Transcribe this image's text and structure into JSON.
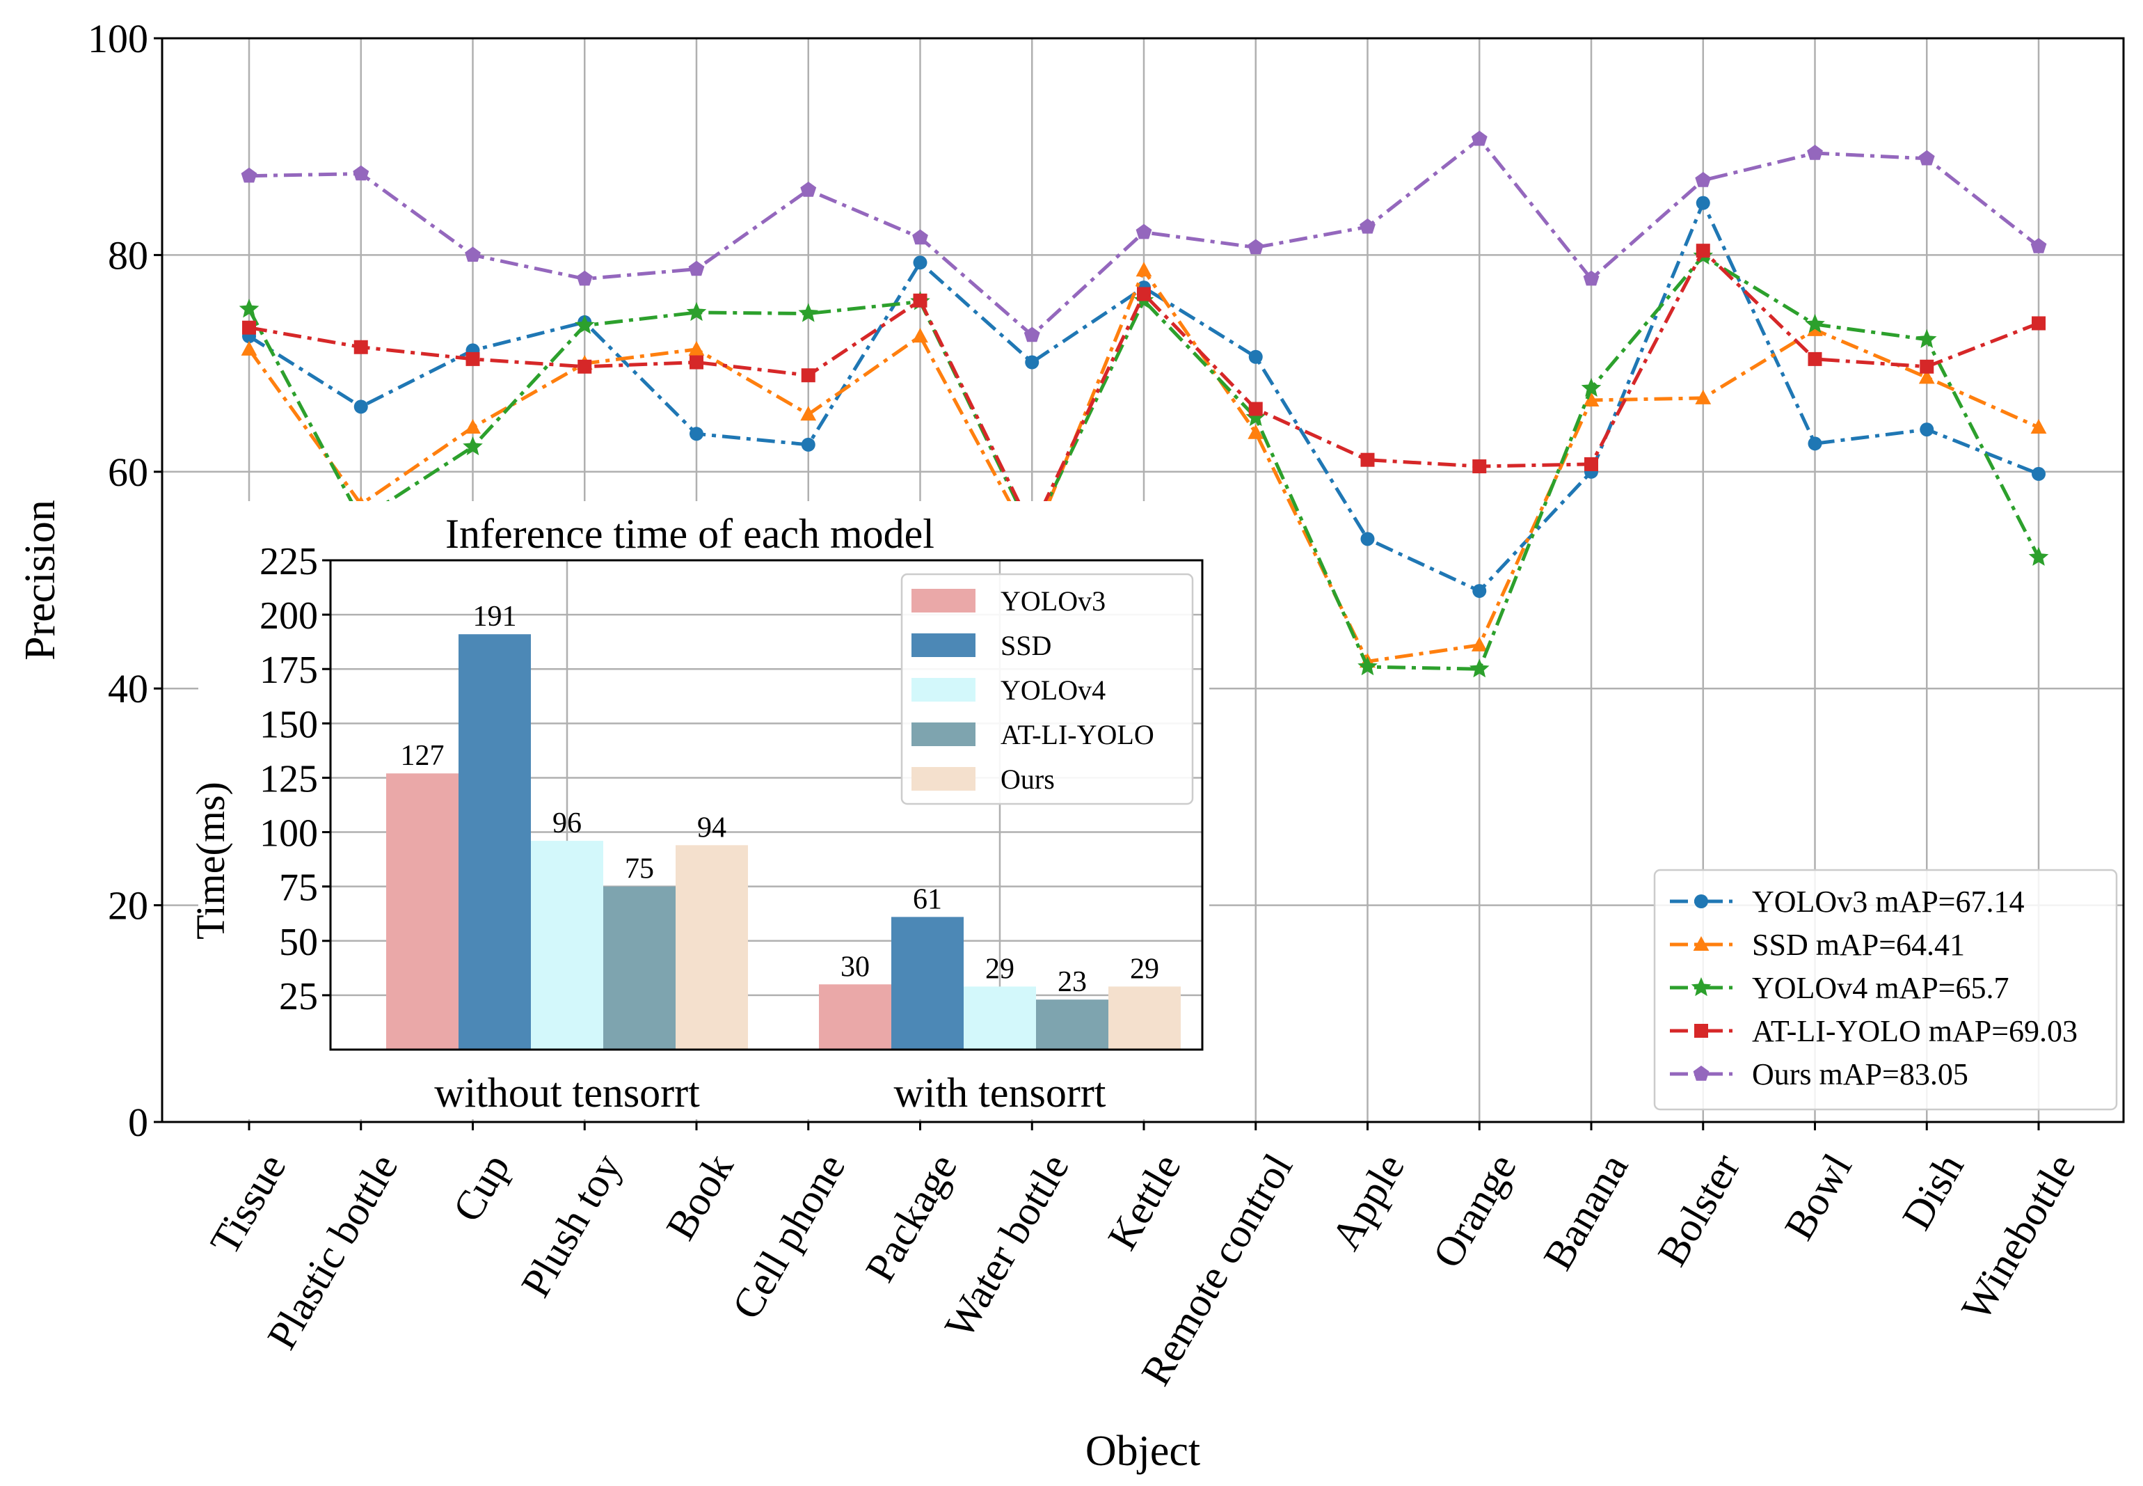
{
  "chart_data": [
    {
      "type": "line",
      "title": "",
      "xlabel": "Object",
      "ylabel": "Precision",
      "ylim": [
        0,
        100
      ],
      "yticks": [
        0,
        20,
        40,
        60,
        80,
        100
      ],
      "ytick_labels": [
        "0",
        "20",
        "40",
        "60",
        "80",
        "100"
      ],
      "grid": true,
      "legend_position": "bottom-right",
      "categories": [
        "Tissue",
        "Plastic bottle",
        "Cup",
        "Plush toy",
        "Book",
        "Cell phone",
        "Package",
        "Water bottle",
        "Kettle",
        "Remote control",
        "Apple",
        "Orange",
        "Banana",
        "Bolster",
        "Bowl",
        "Dish",
        "Winebottle"
      ],
      "series": [
        {
          "name": "YOLOv3",
          "label": "YOLOv3   mAP=67.14",
          "color": "#1f77b4",
          "marker": "circle",
          "values": [
            72.5,
            66.0,
            71.2,
            73.8,
            63.5,
            62.5,
            79.3,
            70.1,
            77.0,
            70.6,
            53.8,
            49.0,
            60.0,
            84.8,
            62.6,
            63.9,
            59.8
          ]
        },
        {
          "name": "SSD",
          "label": "SSD   mAP=64.41",
          "color": "#ff7f0e",
          "marker": "triangle",
          "values": [
            71.3,
            57.0,
            64.1,
            70.0,
            71.3,
            65.3,
            72.5,
            53.4,
            78.6,
            63.6,
            42.5,
            44.0,
            66.6,
            66.8,
            73.1,
            68.7,
            64.1
          ]
        },
        {
          "name": "YOLOv4",
          "label": "YOLOv4   mAP=65.7",
          "color": "#2ca02c",
          "marker": "star",
          "values": [
            75.0,
            55.6,
            62.3,
            73.5,
            74.7,
            74.6,
            75.7,
            54.3,
            75.8,
            65.0,
            42.0,
            41.8,
            67.7,
            79.9,
            73.6,
            72.2,
            52.1
          ]
        },
        {
          "name": "AT-LI-YOLO",
          "label": "AT-LI-YOLO   mAP=69.03",
          "color": "#d62728",
          "marker": "square",
          "values": [
            73.3,
            71.5,
            70.4,
            69.7,
            70.1,
            68.9,
            75.8,
            54.7,
            76.4,
            65.8,
            61.1,
            60.5,
            60.7,
            80.4,
            70.4,
            69.7,
            73.7
          ]
        },
        {
          "name": "Ours",
          "label": "Ours   mAP=83.05",
          "color": "#9467bd",
          "marker": "pentagon",
          "values": [
            87.3,
            87.5,
            80.0,
            77.8,
            78.7,
            86.0,
            81.6,
            72.6,
            82.1,
            80.7,
            82.6,
            90.7,
            77.8,
            86.9,
            89.4,
            88.9,
            80.8
          ]
        }
      ]
    },
    {
      "type": "bar",
      "title": "Inference time of each model",
      "xlabel": "",
      "ylabel": "Time(ms)",
      "ylim": [
        0,
        225
      ],
      "yticks": [
        25,
        50,
        75,
        100,
        125,
        150,
        175,
        200,
        225
      ],
      "ytick_labels": [
        "25",
        "50",
        "75",
        "100",
        "125",
        "150",
        "175",
        "200",
        "225"
      ],
      "grid": true,
      "legend_position": "top-right",
      "categories": [
        "without  tensorrt",
        "with tensorrt"
      ],
      "series": [
        {
          "name": "YOLOv3",
          "color": "#eaa8a8",
          "values": [
            127,
            30
          ]
        },
        {
          "name": "SSD",
          "color": "#4c88b6",
          "values": [
            191,
            61
          ]
        },
        {
          "name": "YOLOv4",
          "color": "#d3f8fb",
          "values": [
            96,
            29
          ]
        },
        {
          "name": "AT-LI-YOLO",
          "color": "#7ea4af",
          "values": [
            75,
            23
          ]
        },
        {
          "name": "Ours",
          "color": "#f4e0cd",
          "values": [
            94,
            29
          ]
        }
      ],
      "value_labels": [
        [
          "127",
          "30"
        ],
        [
          "191",
          "61"
        ],
        [
          "96",
          "29"
        ],
        [
          "75",
          "23"
        ],
        [
          "94",
          "29"
        ]
      ]
    }
  ]
}
